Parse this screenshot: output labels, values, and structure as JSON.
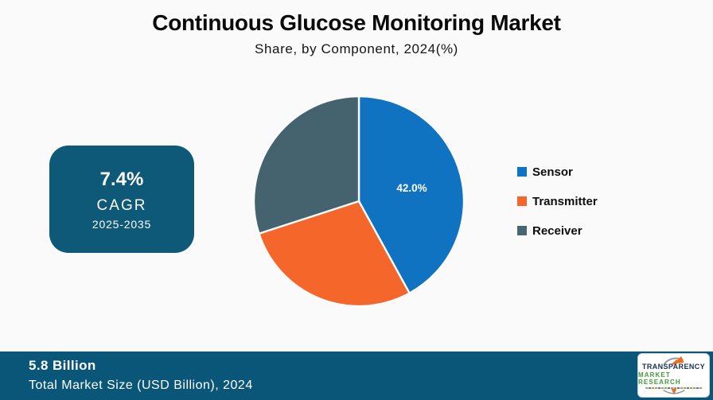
{
  "header": {
    "title": "Continuous Glucose Monitoring Market",
    "subtitle": "Share, by Component, 2024(%)"
  },
  "cagr_box": {
    "value": "7.4%",
    "label": "CAGR",
    "period": "2025-2035",
    "background": "#0e5878"
  },
  "chart_data": {
    "type": "pie",
    "title": "Continuous Glucose Monitoring Market",
    "subtitle": "Share, by Component, 2024(%)",
    "categories": [
      "Sensor",
      "Transmitter",
      "Receiver"
    ],
    "values": [
      42.0,
      28.0,
      30.0
    ],
    "slice_labels": [
      "42.0%",
      "",
      ""
    ],
    "colors": [
      "#0f73c1",
      "#f4662a",
      "#45626f"
    ],
    "start_angle_deg": 0,
    "direction": "clockwise",
    "legend_position": "right",
    "label_radius_ratio": 0.52,
    "separator_color": "#fbfbfb"
  },
  "legend": {
    "items": [
      {
        "label": "Sensor",
        "color": "#0f73c1"
      },
      {
        "label": "Transmitter",
        "color": "#f4662a"
      },
      {
        "label": "Receiver",
        "color": "#4a6572"
      }
    ]
  },
  "footer": {
    "value": "5.8 Billion",
    "caption": "Total Market Size (USD Billion), 2024",
    "background": "#0a5678"
  },
  "logo": {
    "line1": "TRANSPARENCY",
    "line2": "MARKET RESEARCH",
    "arrow_color": "#f26a21",
    "swoosh_color": "#8b989f"
  },
  "colors": {
    "page_background": "#fafafa",
    "teal_brand": "#0b5778",
    "text_primary": "#0d0d0d"
  }
}
